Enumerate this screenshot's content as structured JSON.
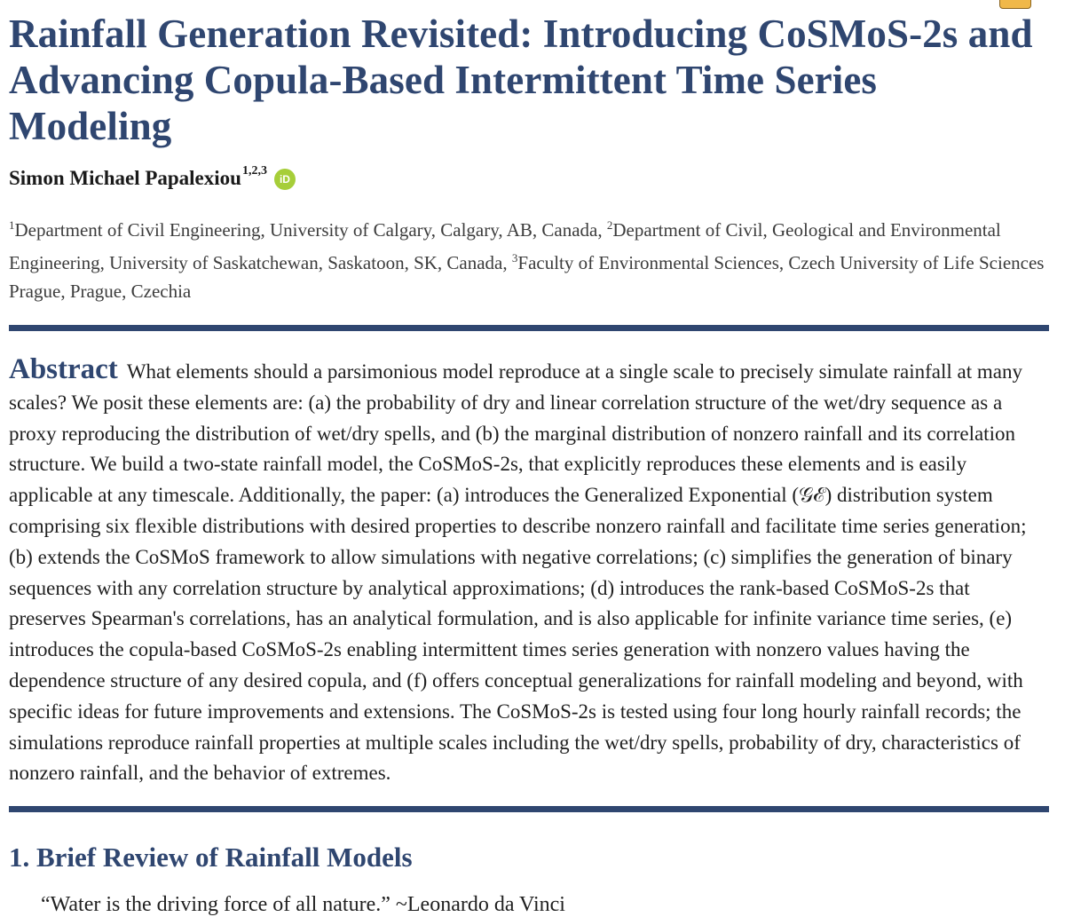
{
  "title": "Rainfall Generation Revisited: Introducing CoSMoS-2s and Advancing Copula-Based Intermittent Time Series Modeling",
  "title_line1": "Rainfall Generation Revisited: Introducing CoSMoS-2s and",
  "title_line2": "Advancing Copula-Based Intermittent Time Series Modeling",
  "author": {
    "name": "Simon Michael Papalexiou",
    "affiliation_marks": "1,2,3",
    "orcid_badge": "iD"
  },
  "affiliations": {
    "mark1": "1",
    "text1": "Department of Civil Engineering, University of Calgary, Calgary, AB, Canada, ",
    "mark2": "2",
    "text2": "Department of Civil, Geological and Environmental Engineering, University of Saskatchewan, Saskatoon, SK, Canada, ",
    "mark3": "3",
    "text3": "Faculty of Environmental Sciences, Czech University of Life Sciences Prague, Prague, Czechia"
  },
  "abstract": {
    "label": "Abstract",
    "body": "What elements should a parsimonious model reproduce at a single scale to precisely simulate rainfall at many scales? We posit these elements are: (a) the probability of dry and linear correlation structure of the wet/dry sequence as a proxy reproducing the distribution of wet/dry spells, and (b) the marginal distribution of nonzero rainfall and its correlation structure. We build a two-state rainfall model, the CoSMoS-2s, that explicitly reproduces these elements and is easily applicable at any timescale. Additionally, the paper: (a) introduces the Generalized Exponential (𝒢ℰ) distribution system comprising six flexible distributions with desired properties to describe nonzero rainfall and facilitate time series generation; (b) extends the CoSMoS framework to allow simulations with negative correlations; (c) simplifies the generation of binary sequences with any correlation structure by analytical approximations; (d) introduces the rank-based CoSMoS-2s that preserves Spearman's correlations, has an analytical formulation, and is also applicable for infinite variance time series, (e) introduces the copula-based CoSMoS-2s enabling intermittent times series generation with nonzero values having the dependence structure of any desired copula, and (f) offers conceptual generalizations for rainfall modeling and beyond, with specific ideas for future improvements and extensions. The CoSMoS-2s is tested using four long hourly rainfall records; the simulations reproduce rainfall properties at multiple scales including the wet/dry spells, probability of dry, characteristics of nonzero rainfall, and the behavior of extremes."
  },
  "section1": {
    "heading": "1.  Brief Review of Rainfall Models",
    "quote": "“Water is the driving force of all nature.” ~Leonardo da Vinci"
  },
  "colors": {
    "accent": "#2f4670",
    "orcid": "#a6ce39",
    "tab": "#f0b84a"
  }
}
